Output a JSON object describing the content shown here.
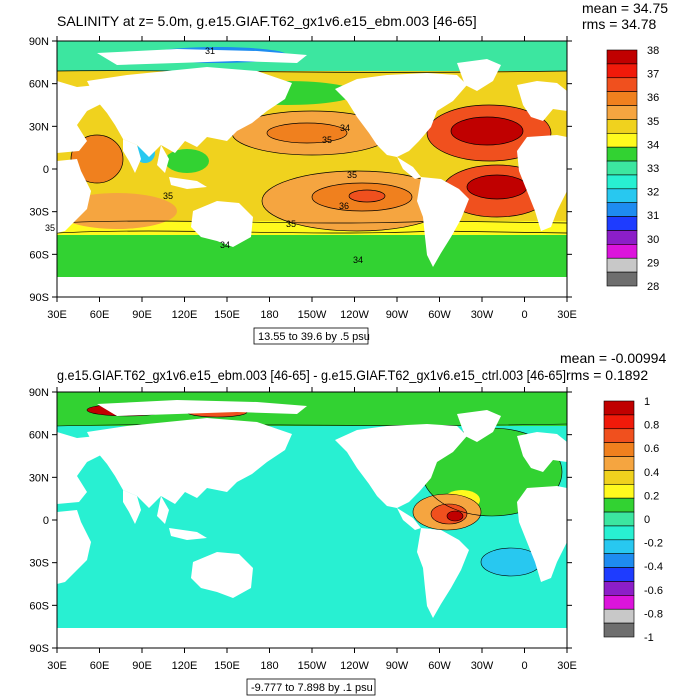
{
  "panels": [
    {
      "title": "SALINITY at z=   5.0m, g.e15.GIAF.T62_gx1v6.e15_ebm.003 [46-65]",
      "stats_mean": "mean = 34.75",
      "stats_rms": "rms = 34.78",
      "range_note": "13.55 to 39.6 by .5 psu",
      "lat_labels": [
        "90N",
        "60N",
        "30N",
        "0",
        "30S",
        "60S",
        "90S"
      ],
      "lon_labels": [
        "30E",
        "60E",
        "90E",
        "120E",
        "150E",
        "180",
        "150W",
        "120W",
        "90W",
        "60W",
        "30W",
        "0",
        "30E"
      ],
      "contour_labels": [
        "31",
        "35",
        "34",
        "35",
        "35",
        "36",
        "35",
        "35",
        "34",
        "34"
      ],
      "colorbar": {
        "labels": [
          "38",
          "37",
          "36",
          "35",
          "34",
          "33",
          "32",
          "31",
          "30",
          "29",
          "28"
        ],
        "colors": [
          "#c00000",
          "#f01a0a",
          "#f0501e",
          "#f0801e",
          "#f5a540",
          "#f0d21e",
          "#fffa1e",
          "#32d232",
          "#3ce6a0",
          "#28f0d2",
          "#28c8f0",
          "#1e8cf0",
          "#1e3cff",
          "#8c1ec8",
          "#dc14dc",
          "#c8c8c8",
          "#6e6e6e"
        ]
      }
    },
    {
      "title": "g.e15.GIAF.T62_gx1v6.e15_ebm.003 [46-65] - g.e15.GIAF.T62_gx1v6.e15_ctrl.003 [46-65]",
      "stats_mean": "mean = -0.00994",
      "stats_rms": "rms = 0.1892",
      "range_note": "-9.777 to 7.898 by .1 psu",
      "lat_labels": [
        "90N",
        "60N",
        "30N",
        "0",
        "30S",
        "60S",
        "90S"
      ],
      "lon_labels": [
        "30E",
        "60E",
        "90E",
        "120E",
        "150E",
        "180",
        "150W",
        "120W",
        "90W",
        "60W",
        "30W",
        "0",
        "30E"
      ],
      "colorbar": {
        "labels": [
          "1",
          "0.8",
          "0.6",
          "0.4",
          "0.2",
          "0",
          "-0.2",
          "-0.4",
          "-0.6",
          "-0.8",
          "-1"
        ],
        "colors": [
          "#c00000",
          "#f01a0a",
          "#f0501e",
          "#f0801e",
          "#f5a540",
          "#f0d21e",
          "#fffa1e",
          "#32d232",
          "#3ce6a0",
          "#28f0d2",
          "#28c8f0",
          "#1e8cf0",
          "#1e3cff",
          "#8c1ec8",
          "#dc14dc",
          "#c8c8c8",
          "#6e6e6e"
        ]
      }
    }
  ]
}
